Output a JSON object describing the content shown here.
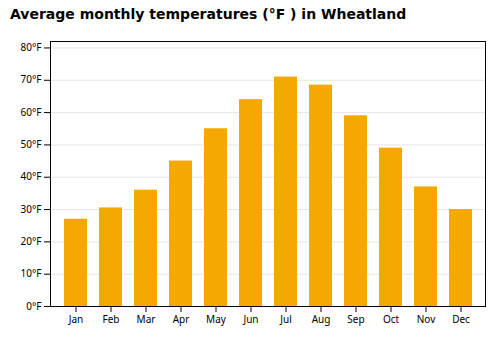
{
  "chart_data": {
    "type": "bar",
    "title": "Average monthly temperatures (°F ) in Wheatland",
    "categories": [
      "Jan",
      "Feb",
      "Mar",
      "Apr",
      "May",
      "Jun",
      "Jul",
      "Aug",
      "Sep",
      "Oct",
      "Nov",
      "Dec"
    ],
    "values": [
      27,
      30.5,
      36,
      45,
      55,
      64,
      71,
      68.5,
      59,
      49,
      37,
      30
    ],
    "color": "#F5A800",
    "ylim": [
      0,
      82
    ],
    "yticks": [
      {
        "value": 0,
        "label": "0°F"
      },
      {
        "value": 10,
        "label": "10°F"
      },
      {
        "value": 20,
        "label": "20°F"
      },
      {
        "value": 30,
        "label": "30°F"
      },
      {
        "value": 40,
        "label": "40°F"
      },
      {
        "value": 50,
        "label": "50°F"
      },
      {
        "value": 60,
        "label": "60°F"
      },
      {
        "value": 70,
        "label": "70°F"
      },
      {
        "value": 80,
        "label": "80°F"
      }
    ],
    "grid": true
  }
}
